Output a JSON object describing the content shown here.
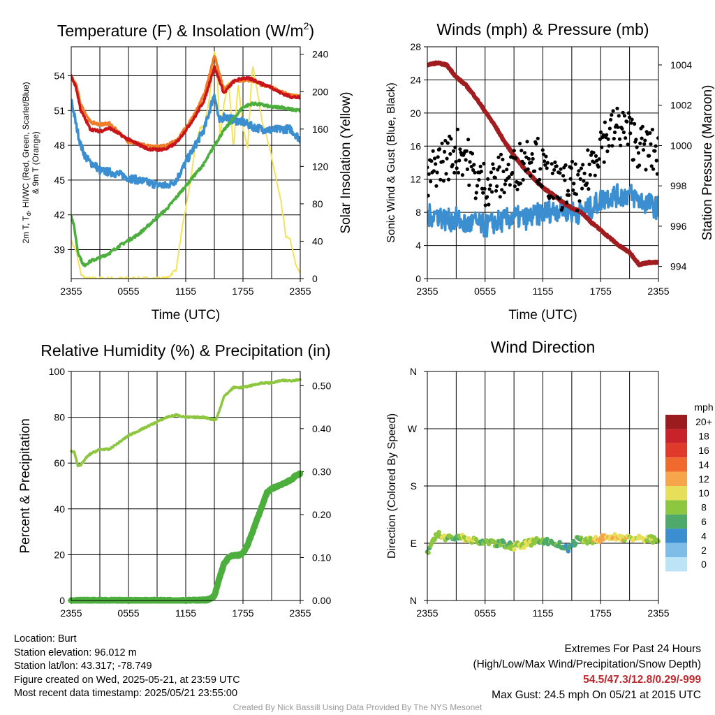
{
  "chart_data": [
    {
      "type": "line",
      "title": "Temperature (F) & Insolation (W/m²)",
      "xlabel": "Time (UTC)",
      "ylabel": "2m T, Td, HI/WC (Red, Green, Scarlet/Blue) & 9m T (Orange)",
      "y2label": "Solar Insolation (Yellow)",
      "xticks": [
        "2355",
        "0555",
        "1155",
        "1755",
        "2355"
      ],
      "ylim": [
        36.5,
        56.5
      ],
      "yticks": [
        39,
        42,
        45,
        48,
        51,
        54
      ],
      "y2lim": [
        0,
        248
      ],
      "y2ticks": [
        0,
        40,
        80,
        120,
        160,
        200,
        240
      ],
      "grid": true,
      "series": [
        {
          "name": "2m T",
          "color": "#c8151b",
          "axis": "y",
          "x": [
            0,
            0.5,
            1,
            2,
            3,
            4,
            6,
            8,
            9,
            10,
            11,
            12,
            13,
            14,
            15,
            16,
            17,
            18,
            19,
            20,
            21,
            22,
            23,
            24
          ],
          "y": [
            54.0,
            53.0,
            51.0,
            49.4,
            49.2,
            49.5,
            48.5,
            47.7,
            47.6,
            47.7,
            48.2,
            49.3,
            50.5,
            52.0,
            54.8,
            52.5,
            53.5,
            53.8,
            53.7,
            53.3,
            53.0,
            52.5,
            52.2,
            52.1
          ]
        },
        {
          "name": "9m T",
          "color": "#f07c28",
          "axis": "y",
          "x": [
            0,
            0.5,
            1,
            2,
            3,
            4,
            6,
            8,
            9,
            10,
            11,
            12,
            13,
            14,
            15,
            16,
            17,
            18,
            19,
            20,
            21,
            22,
            23,
            24
          ],
          "y": [
            53.8,
            53.3,
            51.5,
            50.0,
            49.8,
            49.9,
            48.3,
            48.0,
            47.9,
            48.0,
            48.4,
            49.5,
            50.8,
            52.5,
            55.8,
            52.8,
            53.5,
            53.6,
            53.6,
            53.2,
            53.0,
            52.6,
            52.3,
            52.2
          ]
        },
        {
          "name": "HI/WC",
          "color": "#3b8fd0",
          "axis": "y",
          "x": [
            0,
            0.5,
            1,
            1.5,
            2,
            2.5,
            3,
            4,
            5,
            6,
            7,
            8,
            9,
            10,
            11,
            12,
            13,
            14,
            15,
            15.5,
            16,
            17,
            18,
            19,
            20,
            21,
            22,
            23,
            24
          ],
          "y": [
            52.0,
            49.8,
            48.0,
            47.0,
            46.5,
            46.3,
            45.8,
            45.7,
            45.5,
            45.2,
            45.0,
            44.8,
            44.6,
            44.5,
            45.0,
            46.5,
            48.0,
            49.5,
            52.5,
            50.0,
            50.5,
            50.2,
            50.0,
            49.6,
            49.4,
            49.3,
            49.4,
            49.4,
            48.5
          ]
        },
        {
          "name": "2m Td",
          "color": "#4cae3c",
          "axis": "y",
          "x": [
            0,
            0.3,
            0.7,
            1,
            1.3,
            2,
            3,
            4,
            5,
            6,
            7,
            8,
            9,
            10,
            11,
            12,
            13,
            14,
            15,
            16,
            17,
            18,
            19,
            20,
            21,
            22,
            23,
            24
          ],
          "y": [
            42.0,
            41.0,
            38.8,
            38.2,
            37.6,
            38.0,
            38.3,
            38.7,
            39.3,
            39.8,
            40.3,
            41.0,
            41.8,
            42.5,
            43.5,
            44.5,
            45.5,
            46.5,
            48.0,
            49.3,
            50.3,
            51.3,
            51.6,
            51.5,
            51.3,
            51.3,
            51.1,
            51.0
          ]
        },
        {
          "name": "Solar Insolation",
          "color": "#f4e35a",
          "axis": "y2",
          "x": [
            0,
            0.5,
            1,
            1.5,
            2,
            4,
            6,
            8,
            10,
            11,
            11.5,
            12,
            12.5,
            13,
            13.5,
            14,
            14.5,
            15,
            15.3,
            15.6,
            16,
            16.5,
            17,
            17.5,
            18,
            18.5,
            19,
            20,
            21,
            22,
            22.5,
            23,
            23.5,
            24
          ],
          "y": [
            40,
            30,
            5,
            0,
            0,
            0,
            0,
            0,
            0,
            10,
            45,
            75,
            105,
            140,
            160,
            165,
            195,
            245,
            220,
            150,
            185,
            210,
            140,
            210,
            160,
            140,
            230,
            170,
            130,
            80,
            45,
            40,
            15,
            5
          ]
        }
      ]
    },
    {
      "type": "scatter",
      "title": "Winds (mph) & Pressure (mb)",
      "xlabel": "Time (UTC)",
      "ylabel": "Sonic Wind & Gust (Blue, Black)",
      "y2label": "Station Pressure (Maroon)",
      "xticks": [
        "2355",
        "0555",
        "1155",
        "1755",
        "2355"
      ],
      "ylim": [
        0,
        28
      ],
      "yticks": [
        0,
        4,
        8,
        12,
        16,
        20,
        24,
        28
      ],
      "y2lim": [
        993.4,
        1004.9
      ],
      "y2ticks": [
        994,
        996,
        998,
        1000,
        1002,
        1004
      ],
      "grid": true,
      "series": [
        {
          "name": "Sonic Wind",
          "color": "#3b8fd0",
          "axis": "y",
          "x": [
            0,
            1,
            2,
            3,
            4,
            5,
            6,
            7,
            8,
            9,
            10,
            11,
            12,
            13,
            14,
            15,
            16,
            17,
            18,
            19,
            20,
            21,
            22,
            23,
            24
          ],
          "y": [
            7.5,
            7.8,
            7.0,
            7.2,
            6.5,
            6.8,
            6.3,
            6.8,
            7.0,
            7.5,
            7.2,
            7.5,
            8.0,
            8.2,
            8.5,
            8.0,
            8.0,
            8.5,
            9.5,
            10.0,
            10.0,
            10.2,
            9.5,
            9.0,
            8.5
          ]
        },
        {
          "name": "Gust",
          "color": "#000000",
          "axis": "y",
          "x": [
            0,
            1,
            2,
            3,
            4,
            5,
            6,
            7,
            8,
            9,
            10,
            11,
            12,
            13,
            14,
            15,
            16,
            17,
            18,
            19,
            20,
            21,
            22,
            23,
            24
          ],
          "y": [
            11.5,
            14.0,
            14.5,
            15.5,
            15.0,
            12.0,
            11.5,
            12.0,
            12.5,
            13.0,
            14.5,
            15.5,
            13.0,
            11.5,
            11.0,
            11.5,
            10.5,
            14.0,
            16.5,
            17.5,
            18.5,
            17.5,
            16.0,
            15.5,
            15.0
          ]
        },
        {
          "name": "Station Pressure",
          "color": "#a01c1f",
          "axis": "y2",
          "x": [
            0,
            1,
            2,
            3,
            4,
            5,
            6,
            7,
            8,
            9,
            10,
            11,
            12,
            13,
            14,
            15,
            16,
            17,
            18,
            19,
            20,
            21,
            22,
            23,
            24
          ],
          "y": [
            1004.0,
            1004.1,
            1004.0,
            1003.4,
            1003.0,
            1002.4,
            1001.7,
            1001.0,
            1000.2,
            999.5,
            998.9,
            998.4,
            997.9,
            997.6,
            997.2,
            996.9,
            996.7,
            996.2,
            995.8,
            995.4,
            995.0,
            994.7,
            994.1,
            994.2,
            994.2
          ]
        }
      ]
    },
    {
      "type": "line",
      "title": "Relative Humidity (%) & Precipitation (in)",
      "ylabel": "Percent & Precipitation",
      "xticks": [
        "2355",
        "0555",
        "1155",
        "1755",
        "2355"
      ],
      "ylim": [
        0,
        100
      ],
      "yticks": [
        0,
        20,
        40,
        60,
        80,
        100
      ],
      "y2lim": [
        0,
        0.533
      ],
      "y2ticks": [
        "0.00",
        "0.10",
        "0.20",
        "0.30",
        "0.40",
        "0.50"
      ],
      "grid": true,
      "series": [
        {
          "name": "Relative Humidity",
          "color": "#8dc63f",
          "axis": "y",
          "x": [
            0,
            0.3,
            0.7,
            1,
            1.5,
            2,
            3,
            4,
            5,
            6,
            7,
            8,
            9,
            10,
            11,
            12,
            13,
            14,
            14.8,
            15.2,
            16,
            17,
            18,
            19,
            20,
            21,
            22,
            23,
            24
          ],
          "y": [
            65,
            65,
            59,
            59,
            62,
            64,
            66,
            66,
            69,
            72,
            74,
            76,
            78,
            80,
            81,
            80,
            80,
            80,
            79,
            79,
            89,
            93,
            93,
            94,
            95,
            95,
            96,
            96,
            96.5
          ]
        },
        {
          "name": "Precipitation",
          "color": "#4cae3c",
          "axis": "y2",
          "x": [
            0,
            2,
            4,
            6,
            8,
            10,
            12,
            14,
            14.5,
            15,
            15.5,
            16,
            16.5,
            17,
            17.5,
            18,
            18.5,
            19,
            19.5,
            20,
            20.5,
            21,
            21.5,
            22,
            22.5,
            23,
            23.5,
            24
          ],
          "y": [
            0,
            0,
            0,
            0,
            0,
            0,
            0,
            0.001,
            0.003,
            0.01,
            0.05,
            0.085,
            0.1,
            0.105,
            0.105,
            0.11,
            0.13,
            0.16,
            0.19,
            0.22,
            0.25,
            0.26,
            0.265,
            0.27,
            0.275,
            0.28,
            0.29,
            0.295
          ]
        }
      ]
    },
    {
      "type": "scatter",
      "title": "Wind Direction",
      "ylabel": "Direction (Colored By Speed)",
      "xticks": [
        "2355",
        "0555",
        "1155",
        "1755",
        "2355"
      ],
      "ytick_labels": [
        "N",
        "E",
        "S",
        "W",
        "N"
      ],
      "ylim": [
        0,
        360
      ],
      "grid": true,
      "colorbar": {
        "title": "mph",
        "labels": [
          "20+",
          "18",
          "16",
          "14",
          "12",
          "10",
          "8",
          "6",
          "4",
          "2",
          "0"
        ],
        "colors": [
          "#9b1b1f",
          "#c8222b",
          "#e03a2a",
          "#f06a2e",
          "#f6a54a",
          "#e7df59",
          "#8dc63f",
          "#4daa6a",
          "#3b8fd0",
          "#7dbde8",
          "#bde3f6"
        ]
      },
      "series": [
        {
          "name": "Wind Direction",
          "axis": "y",
          "x": [
            0,
            0.5,
            1,
            1.5,
            2,
            3,
            4,
            5,
            6,
            7,
            8,
            9,
            10,
            11,
            12,
            13,
            14,
            14.5,
            15,
            15.5,
            16,
            17,
            18,
            19,
            20,
            21,
            22,
            23,
            24
          ],
          "y": [
            75,
            95,
            105,
            100,
            98,
            100,
            98,
            93,
            92,
            90,
            89,
            85,
            88,
            92,
            95,
            90,
            86,
            80,
            87,
            95,
            94,
            95,
            97,
            100,
            99,
            98,
            97,
            97,
            95
          ],
          "speeds": [
            6,
            8,
            7,
            9,
            8,
            7,
            9,
            8,
            7,
            8,
            6,
            9,
            10,
            8,
            7,
            6,
            6,
            4,
            6,
            7,
            8,
            9,
            12,
            11,
            10,
            10,
            10,
            9,
            8
          ]
        }
      ]
    }
  ],
  "info": {
    "location": "Location: Burt",
    "elevation": "Station elevation: 96.012 m",
    "latlon": "Station lat/lon: 43.317; -78.749",
    "created": "Figure created on Wed, 2025-05-21, at 23:59 UTC",
    "recent": "Most recent data timestamp: 2025/05/21 23:55:00"
  },
  "extremes": {
    "heading": "Extremes For Past 24 Hours",
    "legend": "(High/Low/Max Wind/Precipitation/Snow Depth)",
    "values": "54.5/47.3/12.8/0.29/-999",
    "gust": "Max Gust: 24.5 mph On 05/21 at 2015 UTC"
  },
  "credit": "Created By Nick Bassill Using Data Provided By The NYS Mesonet"
}
